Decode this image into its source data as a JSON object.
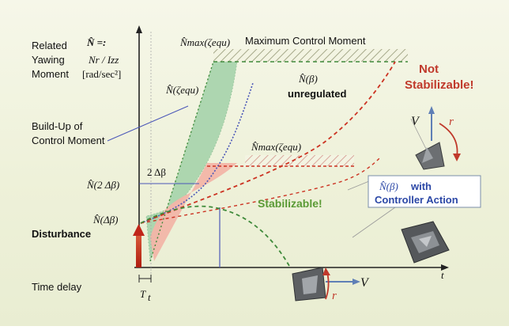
{
  "left_labels": {
    "related_line1": "Related",
    "related_line2": "Yawing",
    "related_line3": "Moment",
    "n_hat_eq": "N̂ =:",
    "n_over_i": "Nr / Izz",
    "units": "[rad/sec²]",
    "buildup_line1": "Build-Up of",
    "buildup_line2": "Control Moment",
    "disturbance": "Disturbance",
    "time_delay": "Time delay"
  },
  "curve_labels": {
    "n_max_top": "N̂max(ζequ)",
    "max_control_moment": "Maximum Control Moment",
    "n_dot_zeta": "N̂(ζequ)",
    "n_beta_top": "N̂(β)",
    "unregulated": "unregulated",
    "n_max_mid": "N̂max(ζequ)",
    "two_delta_beta": "2 Δβ",
    "n_two_delta_beta": "N̂(2 Δβ)",
    "n_delta_beta": "N̂(Δβ)",
    "not_stabilizable_1": "Not",
    "not_stabilizable_2": "Stabilizable!",
    "stabilizable": "Stabilizable!"
  },
  "controller_box": {
    "line1_symbol": "N̂(β)",
    "line1_text": "with",
    "line2": "Controller Action"
  },
  "axis": {
    "t_label": "t",
    "v_label": "V",
    "tt_label": "T",
    "tt_sub": "t",
    "v_top_label": "V",
    "r_top_label": "r",
    "r_bottom_label": "r"
  },
  "colors": {
    "green_fill": "#a9d4ad",
    "pink_fill": "#f2b5a8",
    "red_dashed": "#cc3322",
    "green_dashed": "#3f8a3a",
    "blue_line": "#4b57b8",
    "label_red": "#c0392b",
    "label_green": "#5a9a35",
    "box_blue": "#2b47a6"
  }
}
